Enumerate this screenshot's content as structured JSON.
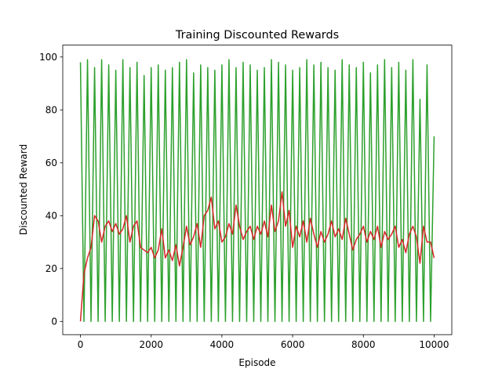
{
  "chart_data": {
    "type": "line",
    "title": "Training Discounted Rewards",
    "xlabel": "Episode",
    "ylabel": "Discounted Reward",
    "x": [
      0,
      100,
      200,
      300,
      400,
      500,
      600,
      700,
      800,
      900,
      1000,
      1100,
      1200,
      1300,
      1400,
      1500,
      1600,
      1700,
      1800,
      1900,
      2000,
      2100,
      2200,
      2300,
      2400,
      2500,
      2600,
      2700,
      2800,
      2900,
      3000,
      3100,
      3200,
      3300,
      3400,
      3500,
      3600,
      3700,
      3800,
      3900,
      4000,
      4100,
      4200,
      4300,
      4400,
      4500,
      4600,
      4700,
      4800,
      4900,
      5000,
      5100,
      5200,
      5300,
      5400,
      5500,
      5600,
      5700,
      5800,
      5900,
      6000,
      6100,
      6200,
      6300,
      6400,
      6500,
      6600,
      6700,
      6800,
      6900,
      7000,
      7100,
      7200,
      7300,
      7400,
      7500,
      7600,
      7700,
      7800,
      7900,
      8000,
      8100,
      8200,
      8300,
      8400,
      8500,
      8600,
      8700,
      8800,
      8900,
      9000,
      9100,
      9200,
      9300,
      9400,
      9500,
      9600,
      9700,
      9800,
      9900,
      10000
    ],
    "series": [
      {
        "color": "#2ca02c",
        "values": [
          98,
          0,
          99,
          0,
          96,
          0,
          99,
          0,
          97,
          0,
          95,
          0,
          99,
          0,
          96,
          0,
          98,
          0,
          93,
          0,
          96,
          0,
          97,
          0,
          95,
          0,
          96,
          0,
          98,
          0,
          99,
          0,
          94,
          0,
          97,
          0,
          96,
          0,
          95,
          0,
          97,
          0,
          99,
          0,
          96,
          0,
          98,
          0,
          97,
          0,
          95,
          0,
          96,
          0,
          99,
          0,
          98,
          0,
          97,
          0,
          95,
          0,
          96,
          0,
          99,
          0,
          97,
          0,
          98,
          0,
          96,
          0,
          95,
          0,
          99,
          0,
          97,
          0,
          96,
          0,
          98,
          0,
          94,
          0,
          97,
          0,
          99,
          0,
          96,
          0,
          98,
          0,
          95,
          0,
          99,
          0,
          84,
          0,
          97,
          0,
          70
        ]
      },
      {
        "color": "#d62728",
        "values": [
          0,
          18,
          24,
          28,
          40,
          38,
          30,
          36,
          38,
          34,
          37,
          33,
          35,
          40,
          30,
          36,
          38,
          28,
          27,
          26,
          28,
          24,
          27,
          35,
          24,
          27,
          23,
          29,
          21,
          28,
          36,
          29,
          32,
          37,
          28,
          40,
          42,
          47,
          35,
          38,
          30,
          32,
          37,
          33,
          44,
          36,
          31,
          34,
          36,
          31,
          36,
          33,
          38,
          32,
          44,
          34,
          38,
          49,
          36,
          42,
          28,
          36,
          32,
          38,
          30,
          39,
          33,
          28,
          34,
          30,
          33,
          38,
          32,
          35,
          31,
          39,
          33,
          27,
          31,
          33,
          36,
          30,
          34,
          31,
          36,
          28,
          34,
          31,
          33,
          36,
          28,
          31,
          26,
          33,
          36,
          32,
          22,
          36,
          30,
          30,
          24
        ]
      }
    ],
    "xlim": [
      -500,
      10500
    ],
    "ylim": [
      -5,
      104.5
    ],
    "xticks": [
      0,
      2000,
      4000,
      6000,
      8000,
      10000
    ],
    "yticks": [
      0,
      20,
      40,
      60,
      80,
      100
    ],
    "grid": false
  }
}
